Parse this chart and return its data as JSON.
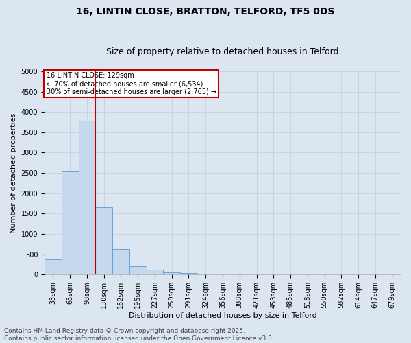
{
  "title_line1": "16, LINTIN CLOSE, BRATTON, TELFORD, TF5 0DS",
  "title_line2": "Size of property relative to detached houses in Telford",
  "xlabel": "Distribution of detached houses by size in Telford",
  "ylabel": "Number of detached properties",
  "categories": [
    "33sqm",
    "65sqm",
    "98sqm",
    "130sqm",
    "162sqm",
    "195sqm",
    "227sqm",
    "259sqm",
    "291sqm",
    "324sqm",
    "356sqm",
    "388sqm",
    "421sqm",
    "453sqm",
    "485sqm",
    "518sqm",
    "550sqm",
    "582sqm",
    "614sqm",
    "647sqm",
    "679sqm"
  ],
  "values": [
    380,
    2530,
    3780,
    1650,
    620,
    200,
    120,
    50,
    30,
    10,
    0,
    0,
    0,
    0,
    0,
    0,
    0,
    0,
    0,
    0,
    0
  ],
  "bar_color": "#c5d8ee",
  "bar_edge_color": "#5b9bd5",
  "grid_color": "#c8d4e4",
  "background_color": "#dce6f1",
  "vline_x_index": 2,
  "vline_color": "#c00000",
  "annotation_text": "16 LINTIN CLOSE: 129sqm\n← 70% of detached houses are smaller (6,534)\n30% of semi-detached houses are larger (2,765) →",
  "annotation_box_facecolor": "#ffffff",
  "annotation_box_edgecolor": "#c00000",
  "ylim_max": 5000,
  "yticks": [
    0,
    500,
    1000,
    1500,
    2000,
    2500,
    3000,
    3500,
    4000,
    4500,
    5000
  ],
  "footnote": "Contains HM Land Registry data © Crown copyright and database right 2025.\nContains public sector information licensed under the Open Government Licence v3.0.",
  "title_fontsize": 10,
  "subtitle_fontsize": 9,
  "tick_fontsize": 7,
  "label_fontsize": 8,
  "annotation_fontsize": 7,
  "footnote_fontsize": 6.5
}
